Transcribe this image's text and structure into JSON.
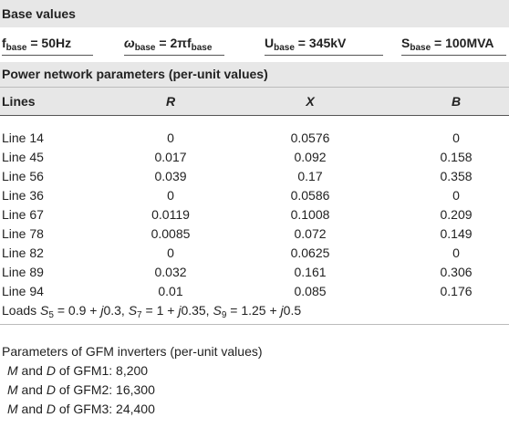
{
  "base_section": {
    "title": "Base values",
    "items": [
      [
        {
          "text": "f"
        },
        {
          "text": "base",
          "sub": true
        },
        {
          "text": " = 50Hz"
        }
      ],
      [
        {
          "text": "ω",
          "italic": true
        },
        {
          "text": "base",
          "sub": true
        },
        {
          "text": " = 2πf"
        },
        {
          "text": "base",
          "sub": true
        }
      ],
      [
        {
          "text": "U"
        },
        {
          "text": "base",
          "sub": true
        },
        {
          "text": " = 345kV"
        }
      ],
      [
        {
          "text": "S"
        },
        {
          "text": "base",
          "sub": true
        },
        {
          "text": " = 100MVA"
        }
      ]
    ]
  },
  "network_section": {
    "title": "Power network parameters (per-unit values)",
    "table": {
      "header": [
        "Lines",
        "R",
        "X",
        "B"
      ],
      "rows": [
        [
          "Line 14",
          "0",
          "0.0576",
          "0"
        ],
        [
          "Line 45",
          "0.017",
          "0.092",
          "0.158"
        ],
        [
          "Line 56",
          "0.039",
          "0.17",
          "0.358"
        ],
        [
          "Line 36",
          "0",
          "0.0586",
          "0"
        ],
        [
          "Line 67",
          "0.0119",
          "0.1008",
          "0.209"
        ],
        [
          "Line 78",
          "0.0085",
          "0.072",
          "0.149"
        ],
        [
          "Line 82",
          "0",
          "0.0625",
          "0"
        ],
        [
          "Line 89",
          "0.032",
          "0.161",
          "0.306"
        ],
        [
          "Line 94",
          "0.01",
          "0.085",
          "0.176"
        ]
      ]
    },
    "loads": [
      {
        "text": "Loads "
      },
      {
        "text": "S",
        "italic": true
      },
      {
        "text": "5",
        "sub": true
      },
      {
        "text": " = 0.9 + "
      },
      {
        "text": "j",
        "italic": true
      },
      {
        "text": "0.3, "
      },
      {
        "text": "S",
        "italic": true
      },
      {
        "text": "7",
        "sub": true
      },
      {
        "text": " = 1 + "
      },
      {
        "text": "j",
        "italic": true
      },
      {
        "text": "0.35, "
      },
      {
        "text": "S",
        "italic": true
      },
      {
        "text": "9",
        "sub": true
      },
      {
        "text": " = 1.25 + "
      },
      {
        "text": "j",
        "italic": true
      },
      {
        "text": "0.5"
      }
    ]
  },
  "gfm_section": {
    "title": "Parameters of GFM inverters (per-unit values)",
    "lines": [
      [
        {
          "text": "M",
          "italic": true
        },
        {
          "text": " and "
        },
        {
          "text": "D",
          "italic": true
        },
        {
          "text": " of GFM1: 8,200"
        }
      ],
      [
        {
          "text": "M",
          "italic": true
        },
        {
          "text": " and "
        },
        {
          "text": "D",
          "italic": true
        },
        {
          "text": " of GFM2: 16,300"
        }
      ],
      [
        {
          "text": "M",
          "italic": true
        },
        {
          "text": " and "
        },
        {
          "text": "D",
          "italic": true
        },
        {
          "text": " of GFM3: 24,400"
        }
      ]
    ]
  }
}
